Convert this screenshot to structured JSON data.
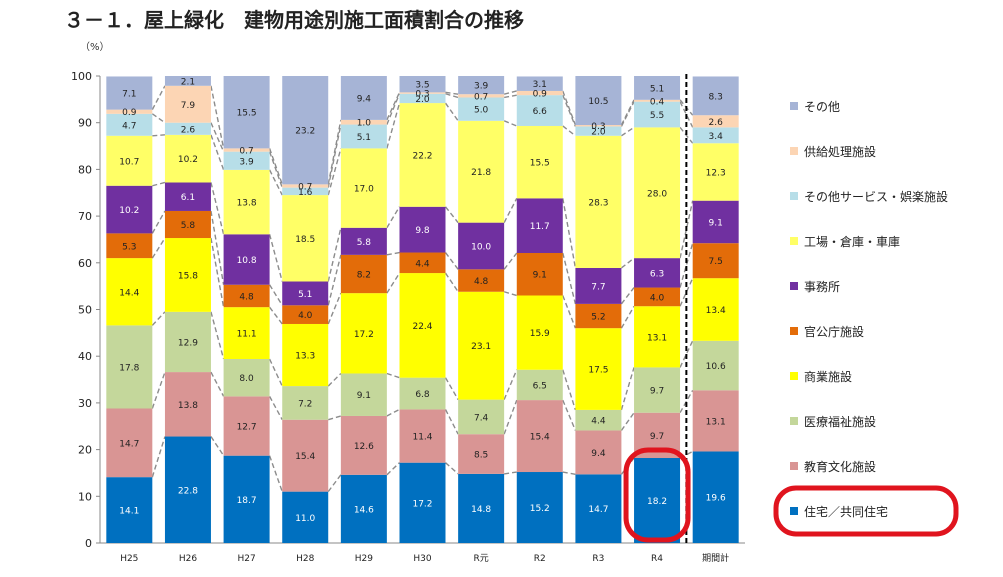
{
  "chart_data": {
    "type": "bar",
    "stacked": true,
    "normalized_percent": true,
    "title": "３－１．屋上緑化　建物用途別施工面積割合の推移",
    "ylabel": "（%）",
    "ylim": [
      0,
      100
    ],
    "yticks": [
      0,
      10,
      20,
      30,
      40,
      50,
      60,
      70,
      80,
      90,
      100
    ],
    "grid": false,
    "legend_position": "right",
    "categories": [
      "H25",
      "H26",
      "H27",
      "H28",
      "H29",
      "H30",
      "R元",
      "R2",
      "R3",
      "R4",
      "期間計"
    ],
    "series": [
      {
        "name": "住宅／共同住宅",
        "color": "#0070c0",
        "label_color": "#ffffff",
        "values": [
          14.1,
          22.8,
          18.7,
          11.0,
          14.6,
          17.2,
          14.8,
          15.2,
          14.7,
          18.2,
          19.6
        ]
      },
      {
        "name": "教育文化施設",
        "color": "#d99594",
        "label_color": "#222222",
        "values": [
          14.7,
          13.8,
          12.7,
          15.4,
          12.6,
          11.4,
          8.5,
          15.4,
          9.4,
          9.7,
          13.1
        ]
      },
      {
        "name": "医療福祉施設",
        "color": "#c4d79b",
        "label_color": "#222222",
        "values": [
          17.8,
          12.9,
          8.0,
          7.2,
          9.1,
          6.8,
          7.4,
          6.5,
          4.4,
          9.7,
          10.6
        ]
      },
      {
        "name": "商業施設",
        "color": "#ffff00",
        "label_color": "#222222",
        "values": [
          14.4,
          15.8,
          11.1,
          13.3,
          17.2,
          22.4,
          23.1,
          15.9,
          17.5,
          13.1,
          13.4
        ]
      },
      {
        "name": "官公庁施設",
        "color": "#e36c09",
        "label_color": "#222222",
        "values": [
          5.3,
          5.8,
          4.8,
          4.0,
          8.2,
          4.4,
          4.8,
          9.1,
          5.2,
          4.0,
          7.5
        ]
      },
      {
        "name": "事務所",
        "color": "#7030a0",
        "label_color": "#ffffff",
        "values": [
          10.2,
          6.1,
          10.8,
          5.1,
          5.8,
          9.8,
          10.0,
          11.7,
          7.7,
          6.3,
          9.1
        ]
      },
      {
        "name": "工場・倉庫・車庫",
        "color": "#ffff66",
        "label_color": "#222222",
        "values": [
          10.7,
          10.2,
          13.8,
          18.5,
          17.0,
          22.2,
          21.8,
          15.5,
          28.3,
          28.0,
          12.3
        ]
      },
      {
        "name": "その他サービス・娯楽施設",
        "color": "#b7dee8",
        "label_color": "#222222",
        "values": [
          4.7,
          2.6,
          3.9,
          1.6,
          5.1,
          2.0,
          5.0,
          6.6,
          2.0,
          5.5,
          3.4
        ]
      },
      {
        "name": "供給処理施設",
        "color": "#fcd5b4",
        "label_color": "#222222",
        "values": [
          0.9,
          7.9,
          0.7,
          0.7,
          1.0,
          0.3,
          0.7,
          0.9,
          0.3,
          0.4,
          2.6
        ]
      },
      {
        "name": "その他",
        "color": "#a6b4d6",
        "label_color": "#222222",
        "values": [
          7.1,
          2.1,
          15.5,
          23.2,
          9.4,
          3.5,
          3.9,
          3.1,
          10.5,
          5.1,
          8.3
        ]
      }
    ],
    "highlight_category": "R4",
    "highlight_series": "住宅／共同住宅",
    "highlight_color": "#e0141e",
    "divider_before": "期間計"
  }
}
